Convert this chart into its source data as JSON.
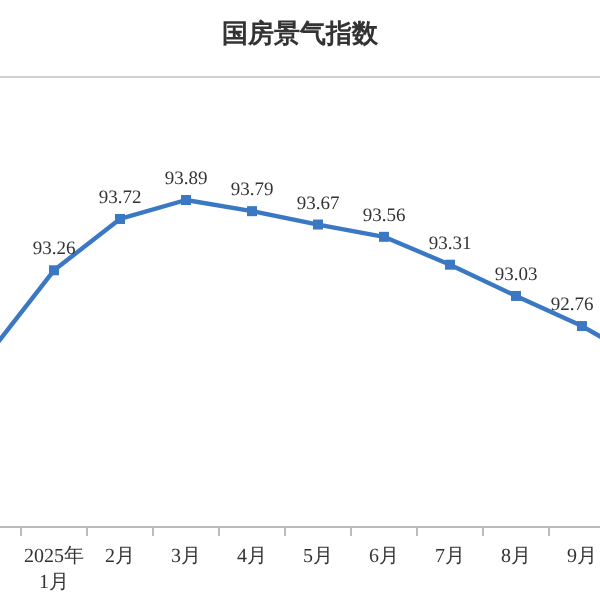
{
  "chart_data": {
    "type": "line",
    "title": "国房景气指数",
    "categories": [
      null,
      "2025年\n1月",
      "2月",
      "3月",
      "4月",
      "5月",
      "6月",
      "7月",
      "8月",
      "9月",
      null
    ],
    "series": [
      {
        "color": "#3a78c4",
        "values": [
          92.5,
          93.26,
          93.72,
          93.89,
          93.79,
          93.67,
          93.56,
          93.31,
          93.03,
          92.76,
          92.42
        ],
        "value_labels": [
          null,
          "93.26",
          "93.72",
          "93.89",
          "93.79",
          "93.67",
          "93.56",
          "93.31",
          "93.03",
          "92.76",
          null
        ]
      }
    ],
    "marker": "square",
    "line_style": "solid"
  }
}
